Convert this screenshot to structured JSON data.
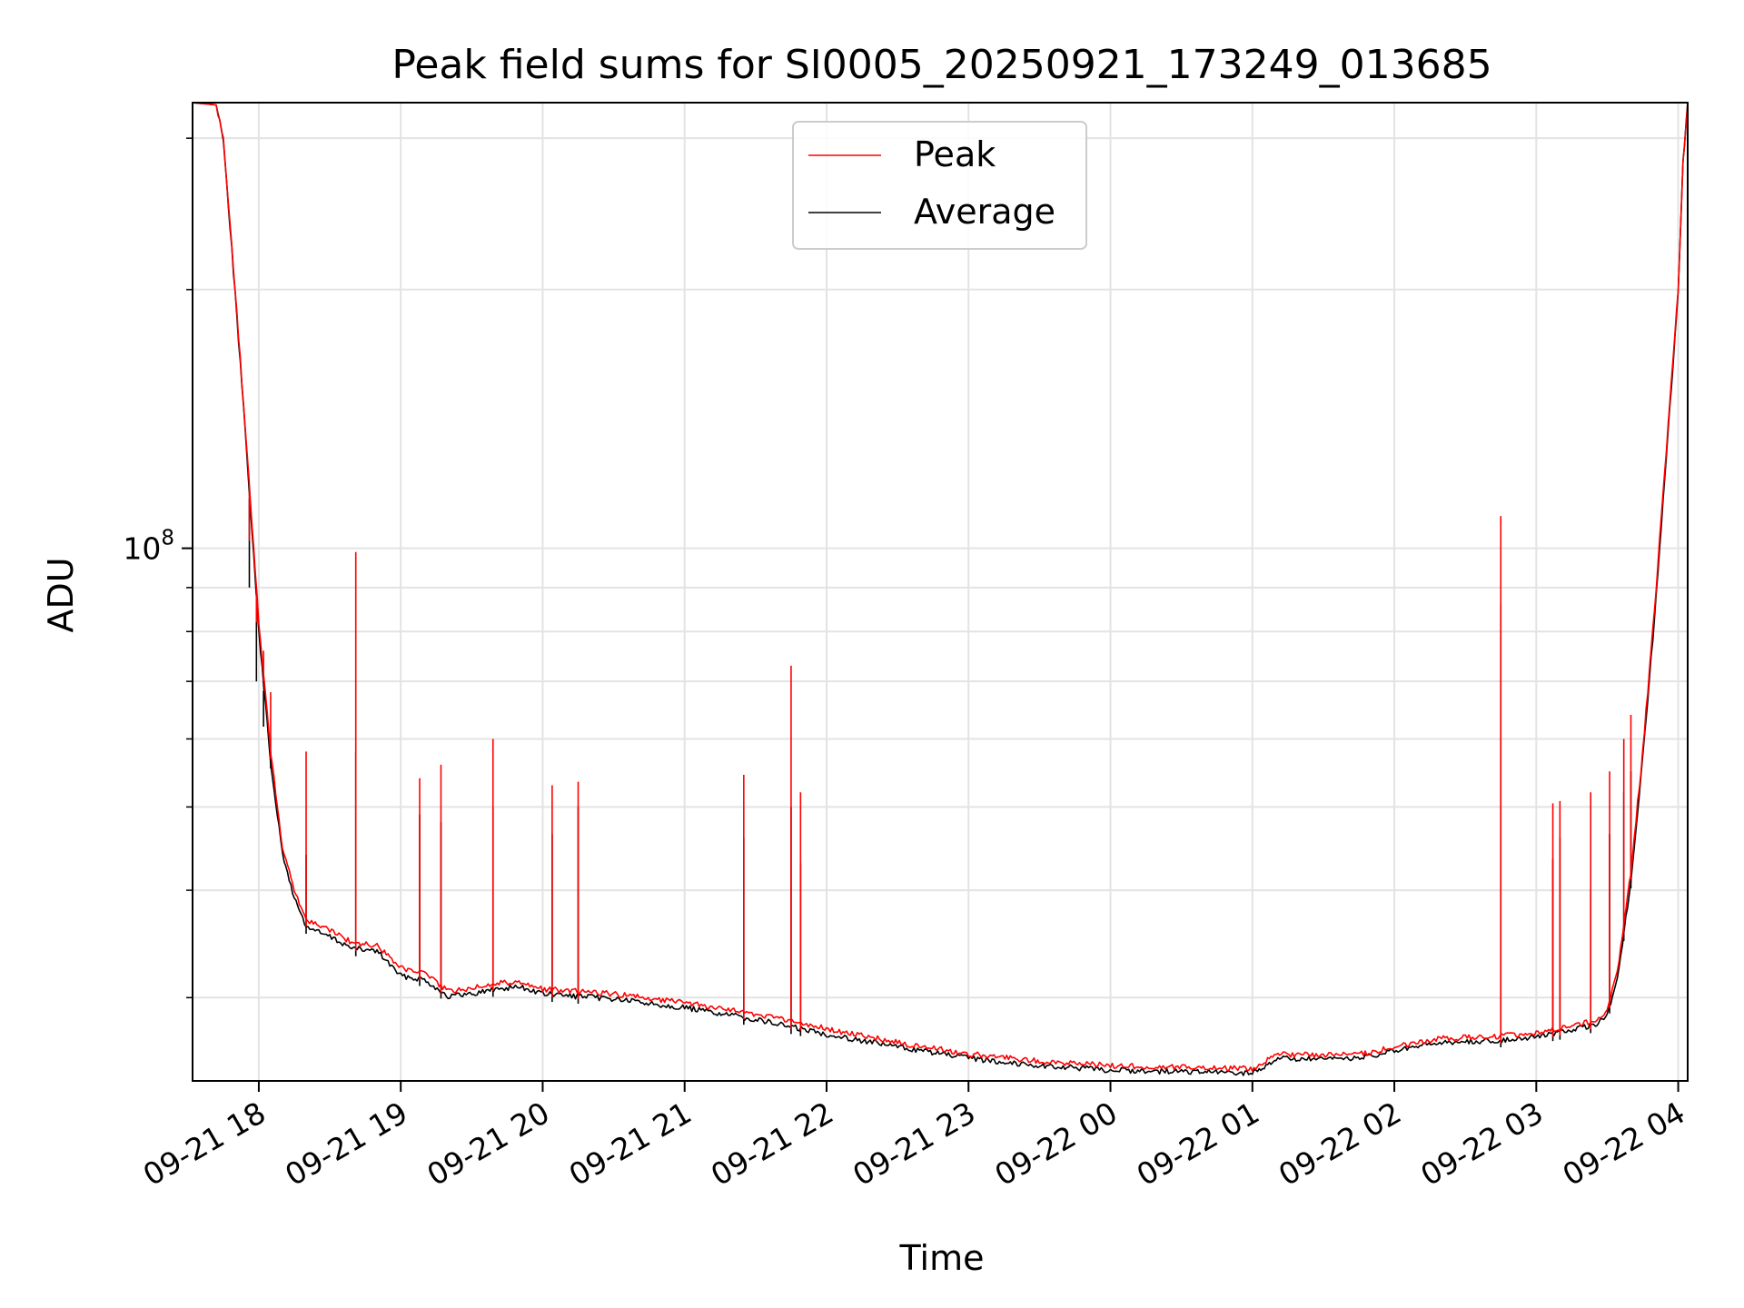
{
  "chart_data": {
    "type": "line",
    "title": "Peak field sums for SI0005_20250921_173249_013685",
    "xlabel": "Time",
    "ylabel": "ADU",
    "yscale": "log",
    "ylim": [
      24000000,
      330000000
    ],
    "xlim": [
      "2025-09-21 17:32",
      "2025-09-22 04:04"
    ],
    "y_major_ticks": [
      {
        "value": 100000000,
        "label": "10^8"
      }
    ],
    "y_minor_ticks": [
      30000000,
      40000000,
      50000000,
      60000000,
      70000000,
      80000000,
      90000000,
      200000000,
      300000000
    ],
    "x_ticks": [
      {
        "t": "2025-09-21 18:00",
        "label": "09-21 18"
      },
      {
        "t": "2025-09-21 19:00",
        "label": "09-21 19"
      },
      {
        "t": "2025-09-21 20:00",
        "label": "09-21 20"
      },
      {
        "t": "2025-09-21 21:00",
        "label": "09-21 21"
      },
      {
        "t": "2025-09-21 22:00",
        "label": "09-21 22"
      },
      {
        "t": "2025-09-21 23:00",
        "label": "09-21 23"
      },
      {
        "t": "2025-09-22 00:00",
        "label": "09-22 00"
      },
      {
        "t": "2025-09-22 01:00",
        "label": "09-22 01"
      },
      {
        "t": "2025-09-22 02:00",
        "label": "09-22 02"
      },
      {
        "t": "2025-09-22 03:00",
        "label": "09-22 03"
      },
      {
        "t": "2025-09-22 04:00",
        "label": "09-22 04"
      }
    ],
    "grid": true,
    "legend_position": "top-center",
    "series": [
      {
        "name": "Peak",
        "color": "#ff0000",
        "points": [
          [
            "2025-09-21 17:32",
            330000000
          ],
          [
            "2025-09-21 17:42",
            328000000
          ],
          [
            "2025-09-21 17:45",
            300000000
          ],
          [
            "2025-09-21 17:50",
            200000000
          ],
          [
            "2025-09-21 17:55",
            130000000
          ],
          [
            "2025-09-21 18:00",
            82000000
          ],
          [
            "2025-09-21 18:05",
            58000000
          ],
          [
            "2025-09-21 18:10",
            45000000
          ],
          [
            "2025-09-21 18:15",
            40000000
          ],
          [
            "2025-09-21 18:20",
            37000000
          ],
          [
            "2025-09-21 18:30",
            36000000
          ],
          [
            "2025-09-21 18:40",
            34700000
          ],
          [
            "2025-09-21 18:50",
            34500000
          ],
          [
            "2025-09-21 19:00",
            32500000
          ],
          [
            "2025-09-21 19:10",
            32000000
          ],
          [
            "2025-09-21 19:20",
            30500000
          ],
          [
            "2025-09-21 19:30",
            30800000
          ],
          [
            "2025-09-21 19:40",
            31200000
          ],
          [
            "2025-09-21 19:50",
            31300000
          ],
          [
            "2025-09-21 20:00",
            30700000
          ],
          [
            "2025-09-21 20:30",
            30300000
          ],
          [
            "2025-09-21 21:00",
            29600000
          ],
          [
            "2025-09-21 21:30",
            28700000
          ],
          [
            "2025-09-21 22:00",
            27600000
          ],
          [
            "2025-09-21 22:30",
            26600000
          ],
          [
            "2025-09-21 23:00",
            25800000
          ],
          [
            "2025-09-21 23:30",
            25300000
          ],
          [
            "2025-09-22 00:00",
            25000000
          ],
          [
            "2025-09-22 00:30",
            24900000
          ],
          [
            "2025-09-22 01:00",
            24800000
          ],
          [
            "2025-09-22 01:05",
            25200000
          ],
          [
            "2025-09-22 01:10",
            25800000
          ],
          [
            "2025-09-22 01:30",
            25700000
          ],
          [
            "2025-09-22 01:50",
            25900000
          ],
          [
            "2025-09-22 02:00",
            26300000
          ],
          [
            "2025-09-22 02:20",
            26900000
          ],
          [
            "2025-09-22 02:40",
            27000000
          ],
          [
            "2025-09-22 03:00",
            27300000
          ],
          [
            "2025-09-22 03:15",
            27800000
          ],
          [
            "2025-09-22 03:25",
            28200000
          ],
          [
            "2025-09-22 03:30",
            29000000
          ],
          [
            "2025-09-22 03:35",
            33000000
          ],
          [
            "2025-09-22 03:40",
            42000000
          ],
          [
            "2025-09-22 03:45",
            58000000
          ],
          [
            "2025-09-22 03:50",
            85000000
          ],
          [
            "2025-09-22 03:55",
            130000000
          ],
          [
            "2025-09-22 04:00",
            200000000
          ],
          [
            "2025-09-22 04:02",
            280000000
          ],
          [
            "2025-09-22 04:04",
            330000000
          ]
        ],
        "spikes": [
          [
            "2025-09-21 17:56",
            102000000
          ],
          [
            "2025-09-21 17:59",
            82000000
          ],
          [
            "2025-09-21 18:02",
            76000000
          ],
          [
            "2025-09-21 18:05",
            68000000
          ],
          [
            "2025-09-21 18:20",
            58000000
          ],
          [
            "2025-09-21 18:41",
            99000000
          ],
          [
            "2025-09-21 19:08",
            54000000
          ],
          [
            "2025-09-21 19:17",
            56000000
          ],
          [
            "2025-09-21 19:39",
            60000000
          ],
          [
            "2025-09-21 20:04",
            53000000
          ],
          [
            "2025-09-21 20:15",
            53500000
          ],
          [
            "2025-09-21 21:25",
            54500000
          ],
          [
            "2025-09-21 21:45",
            73000000
          ],
          [
            "2025-09-21 21:49",
            52000000
          ],
          [
            "2025-09-22 02:45",
            109000000
          ],
          [
            "2025-09-22 03:07",
            50500000
          ],
          [
            "2025-09-22 03:10",
            50800000
          ],
          [
            "2025-09-22 03:23",
            52000000
          ],
          [
            "2025-09-22 03:31",
            55000000
          ],
          [
            "2025-09-22 03:37",
            60000000
          ],
          [
            "2025-09-22 03:40",
            64000000
          ]
        ]
      },
      {
        "name": "Average",
        "color": "#000000",
        "points": [
          [
            "2025-09-21 17:32",
            330000000
          ],
          [
            "2025-09-21 17:42",
            328000000
          ],
          [
            "2025-09-21 17:45",
            300000000
          ],
          [
            "2025-09-21 17:50",
            198000000
          ],
          [
            "2025-09-21 17:55",
            128000000
          ],
          [
            "2025-09-21 18:00",
            80000000
          ],
          [
            "2025-09-21 18:05",
            56500000
          ],
          [
            "2025-09-21 18:10",
            44000000
          ],
          [
            "2025-09-21 18:15",
            39200000
          ],
          [
            "2025-09-21 18:20",
            36300000
          ],
          [
            "2025-09-21 18:30",
            35300000
          ],
          [
            "2025-09-21 18:40",
            34200000
          ],
          [
            "2025-09-21 18:50",
            34000000
          ],
          [
            "2025-09-21 19:00",
            31800000
          ],
          [
            "2025-09-21 19:10",
            31500000
          ],
          [
            "2025-09-21 19:20",
            30100000
          ],
          [
            "2025-09-21 19:30",
            30300000
          ],
          [
            "2025-09-21 19:40",
            30700000
          ],
          [
            "2025-09-21 19:50",
            30900000
          ],
          [
            "2025-09-21 20:00",
            30300000
          ],
          [
            "2025-09-21 20:30",
            29900000
          ],
          [
            "2025-09-21 21:00",
            29200000
          ],
          [
            "2025-09-21 21:30",
            28300000
          ],
          [
            "2025-09-21 22:00",
            27200000
          ],
          [
            "2025-09-21 22:30",
            26300000
          ],
          [
            "2025-09-21 23:00",
            25500000
          ],
          [
            "2025-09-21 23:30",
            25000000
          ],
          [
            "2025-09-22 00:00",
            24700000
          ],
          [
            "2025-09-22 00:30",
            24600000
          ],
          [
            "2025-09-22 01:00",
            24500000
          ],
          [
            "2025-09-22 01:05",
            24900000
          ],
          [
            "2025-09-22 01:10",
            25500000
          ],
          [
            "2025-09-22 01:30",
            25400000
          ],
          [
            "2025-09-22 01:50",
            25600000
          ],
          [
            "2025-09-22 02:00",
            26000000
          ],
          [
            "2025-09-22 02:20",
            26600000
          ],
          [
            "2025-09-22 02:40",
            26700000
          ],
          [
            "2025-09-22 03:00",
            27000000
          ],
          [
            "2025-09-22 03:15",
            27500000
          ],
          [
            "2025-09-22 03:25",
            27900000
          ],
          [
            "2025-09-22 03:30",
            28600000
          ],
          [
            "2025-09-22 03:35",
            32400000
          ],
          [
            "2025-09-22 03:40",
            41000000
          ],
          [
            "2025-09-22 03:45",
            57000000
          ],
          [
            "2025-09-22 03:50",
            83000000
          ],
          [
            "2025-09-22 03:55",
            128000000
          ],
          [
            "2025-09-22 04:00",
            198000000
          ],
          [
            "2025-09-22 04:02",
            280000000
          ],
          [
            "2025-09-22 04:04",
            330000000
          ]
        ],
        "spikes": [
          [
            "2025-09-21 17:56",
            90000000
          ],
          [
            "2025-09-21 17:59",
            70000000
          ],
          [
            "2025-09-21 18:02",
            62000000
          ],
          [
            "2025-09-21 18:05",
            58000000
          ],
          [
            "2025-09-21 18:20",
            44000000
          ],
          [
            "2025-09-21 18:41",
            58000000
          ],
          [
            "2025-09-21 19:08",
            49000000
          ],
          [
            "2025-09-21 19:17",
            48000000
          ],
          [
            "2025-09-21 19:39",
            50000000
          ],
          [
            "2025-09-21 20:04",
            46500000
          ],
          [
            "2025-09-21 20:15",
            50000000
          ],
          [
            "2025-09-21 21:25",
            46000000
          ],
          [
            "2025-09-21 21:45",
            50000000
          ],
          [
            "2025-09-21 21:49",
            43000000
          ],
          [
            "2025-09-22 02:45",
            86000000
          ],
          [
            "2025-09-22 03:07",
            43500000
          ],
          [
            "2025-09-22 03:10",
            46000000
          ],
          [
            "2025-09-22 03:23",
            40000000
          ],
          [
            "2025-09-22 03:31",
            46500000
          ],
          [
            "2025-09-22 03:37",
            52000000
          ],
          [
            "2025-09-22 03:40",
            55000000
          ]
        ]
      }
    ]
  }
}
